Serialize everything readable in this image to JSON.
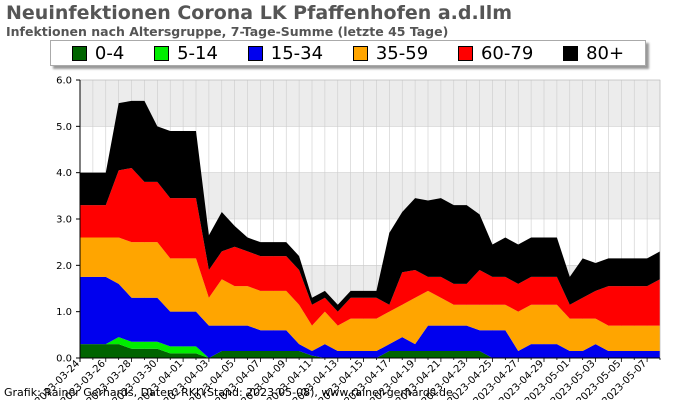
{
  "header": {
    "title": "Neuinfektionen Corona LK Pfaffenhofen a.d.Ilm",
    "subtitle": "Infektionen nach Altersgruppe, 7-Tage-Summe (letzte 45 Tage)"
  },
  "footer": {
    "credit": "Grafik: Rainer Gerhards, Daten: RKI (Stand: 2023-05-08), www.rainer-gerhards.de"
  },
  "chart_data": {
    "type": "area",
    "stacked": true,
    "title": "Neuinfektionen Corona LK Pfaffenhofen a.d.Ilm",
    "subtitle": "Infektionen nach Altersgruppe, 7-Tage-Summe (letzte 45 Tage)",
    "legend_position": "top",
    "grid": true,
    "ylim": [
      0,
      6
    ],
    "yticks": [
      "0.0",
      "1.0",
      "2.0",
      "3.0",
      "4.0",
      "5.0",
      "6.0"
    ],
    "xtick_labels": [
      "2023-03-24",
      "2023-03-26",
      "2023-03-28",
      "2023-03-30",
      "2023-04-01",
      "2023-04-03",
      "2023-04-05",
      "2023-04-07",
      "2023-04-09",
      "2023-04-11",
      "2023-04-13",
      "2023-04-15",
      "2023-04-17",
      "2023-04-19",
      "2023-04-21",
      "2023-04-23",
      "2023-04-25",
      "2023-04-27",
      "2023-04-29",
      "2023-05-01",
      "2023-05-03",
      "2023-05-05",
      "2023-05-07"
    ],
    "xtick_every": 2,
    "x": [
      "2023-03-24",
      "2023-03-25",
      "2023-03-26",
      "2023-03-27",
      "2023-03-28",
      "2023-03-29",
      "2023-03-30",
      "2023-03-31",
      "2023-04-01",
      "2023-04-02",
      "2023-04-03",
      "2023-04-04",
      "2023-04-05",
      "2023-04-06",
      "2023-04-07",
      "2023-04-08",
      "2023-04-09",
      "2023-04-10",
      "2023-04-11",
      "2023-04-12",
      "2023-04-13",
      "2023-04-14",
      "2023-04-15",
      "2023-04-16",
      "2023-04-17",
      "2023-04-18",
      "2023-04-19",
      "2023-04-20",
      "2023-04-21",
      "2023-04-22",
      "2023-04-23",
      "2023-04-24",
      "2023-04-25",
      "2023-04-26",
      "2023-04-27",
      "2023-04-28",
      "2023-04-29",
      "2023-04-30",
      "2023-05-01",
      "2023-05-02",
      "2023-05-03",
      "2023-05-04",
      "2023-05-05",
      "2023-05-06",
      "2023-05-07",
      "2023-05-08"
    ],
    "series": [
      {
        "name": "0-4",
        "color": "#006400",
        "values": [
          0.3,
          0.3,
          0.3,
          0.3,
          0.2,
          0.2,
          0.2,
          0.1,
          0.1,
          0.1,
          0.0,
          0.15,
          0.15,
          0.15,
          0.15,
          0.15,
          0.15,
          0.15,
          0.05,
          0.0,
          0.0,
          0.0,
          0.0,
          0.0,
          0.15,
          0.15,
          0.15,
          0.15,
          0.15,
          0.15,
          0.15,
          0.15,
          0.0,
          0.0,
          0.0,
          0.0,
          0.0,
          0.0,
          0.0,
          0.0,
          0.0,
          0.0,
          0.0,
          0.0,
          0.0,
          0.0
        ]
      },
      {
        "name": "5-14",
        "color": "#00ee00",
        "values": [
          0.0,
          0.0,
          0.0,
          0.15,
          0.15,
          0.15,
          0.15,
          0.15,
          0.15,
          0.15,
          0.0,
          0.0,
          0.0,
          0.0,
          0.0,
          0.0,
          0.0,
          0.0,
          0.0,
          0.0,
          0.0,
          0.0,
          0.0,
          0.0,
          0.0,
          0.0,
          0.0,
          0.0,
          0.0,
          0.0,
          0.0,
          0.0,
          0.0,
          0.0,
          0.0,
          0.0,
          0.0,
          0.0,
          0.0,
          0.0,
          0.0,
          0.0,
          0.0,
          0.0,
          0.0,
          0.0
        ]
      },
      {
        "name": "15-34",
        "color": "#0000ee",
        "values": [
          1.45,
          1.45,
          1.45,
          1.15,
          0.95,
          0.95,
          0.95,
          0.75,
          0.75,
          0.75,
          0.7,
          0.55,
          0.55,
          0.55,
          0.45,
          0.45,
          0.45,
          0.15,
          0.1,
          0.3,
          0.15,
          0.15,
          0.15,
          0.15,
          0.15,
          0.3,
          0.15,
          0.55,
          0.55,
          0.55,
          0.55,
          0.45,
          0.6,
          0.6,
          0.15,
          0.3,
          0.3,
          0.3,
          0.15,
          0.15,
          0.3,
          0.15,
          0.15,
          0.15,
          0.15,
          0.15
        ]
      },
      {
        "name": "35-59",
        "color": "#ffa500",
        "values": [
          0.85,
          0.85,
          0.85,
          1.0,
          1.2,
          1.2,
          1.2,
          1.15,
          1.15,
          1.15,
          0.6,
          1.0,
          0.85,
          0.85,
          0.85,
          0.85,
          0.85,
          0.85,
          0.55,
          0.7,
          0.55,
          0.7,
          0.7,
          0.7,
          0.7,
          0.7,
          1.0,
          0.75,
          0.6,
          0.45,
          0.45,
          0.55,
          0.55,
          0.55,
          0.85,
          0.85,
          0.85,
          0.85,
          0.7,
          0.7,
          0.55,
          0.55,
          0.55,
          0.55,
          0.55,
          0.55
        ]
      },
      {
        "name": "60-79",
        "color": "#ff0000",
        "values": [
          0.7,
          0.7,
          0.7,
          1.45,
          1.6,
          1.3,
          1.3,
          1.3,
          1.3,
          1.3,
          0.6,
          0.6,
          0.85,
          0.75,
          0.75,
          0.75,
          0.75,
          0.75,
          0.45,
          0.3,
          0.3,
          0.45,
          0.45,
          0.45,
          0.15,
          0.7,
          0.6,
          0.3,
          0.45,
          0.45,
          0.45,
          0.75,
          0.6,
          0.6,
          0.6,
          0.6,
          0.6,
          0.6,
          0.3,
          0.45,
          0.6,
          0.85,
          0.85,
          0.85,
          0.85,
          1.0
        ]
      },
      {
        "name": "80+",
        "color": "#000000",
        "values": [
          0.7,
          0.7,
          0.7,
          1.45,
          1.45,
          1.75,
          1.2,
          1.45,
          1.45,
          1.45,
          0.75,
          0.85,
          0.45,
          0.3,
          0.3,
          0.3,
          0.3,
          0.3,
          0.15,
          0.15,
          0.15,
          0.15,
          0.15,
          0.15,
          1.55,
          1.3,
          1.55,
          1.65,
          1.7,
          1.7,
          1.7,
          1.2,
          0.7,
          0.85,
          0.85,
          0.85,
          0.85,
          0.85,
          0.6,
          0.85,
          0.6,
          0.6,
          0.6,
          0.6,
          0.6,
          0.6
        ]
      }
    ]
  }
}
